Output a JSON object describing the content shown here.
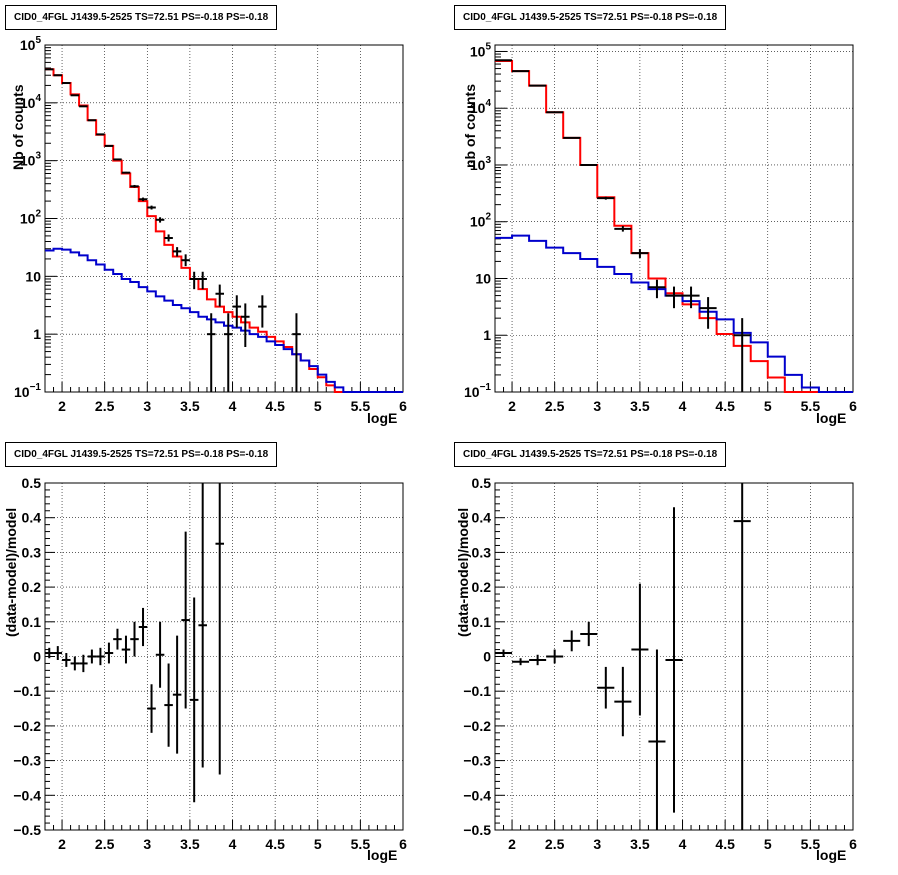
{
  "chart_data": [
    {
      "type": "line",
      "title": "CID0_4FGL J1439.5-2525 TS=72.51 PS=-0.18 PS=-0.18",
      "xlabel": "logE",
      "ylabel": "Nb of counts",
      "xlim": [
        1.8,
        6.0
      ],
      "ylim": [
        0.1,
        100000
      ],
      "yscale": "log",
      "grid": true,
      "xticks": [
        "2",
        "2.5",
        "3",
        "3.5",
        "4",
        "4.5",
        "5",
        "5.5",
        "6"
      ],
      "yticks": [
        {
          "v": 0.1,
          "base": "10",
          "exp": "−1"
        },
        {
          "v": 1,
          "base": "1",
          "exp": ""
        },
        {
          "v": 10,
          "base": "10",
          "exp": ""
        },
        {
          "v": 100,
          "base": "10",
          "exp": "2"
        },
        {
          "v": 1000,
          "base": "10",
          "exp": "3"
        },
        {
          "v": 10000,
          "base": "10",
          "exp": "4"
        },
        {
          "v": 100000,
          "base": "10",
          "exp": "5"
        }
      ],
      "binwidth": 0.1,
      "series": [
        {
          "color": "#ff0000",
          "x": [
            1.8,
            1.9,
            2.0,
            2.1,
            2.2,
            2.3,
            2.4,
            2.5,
            2.6,
            2.7,
            2.8,
            2.9,
            3.0,
            3.1,
            3.2,
            3.3,
            3.4,
            3.5,
            3.6,
            3.7,
            3.8,
            3.9,
            4.0,
            4.1,
            4.2,
            4.3,
            4.4,
            4.5,
            4.6,
            4.7,
            4.8,
            4.9,
            5.0,
            5.1,
            5.2,
            5.3,
            5.4,
            5.5,
            5.6,
            5.7,
            5.8,
            5.9
          ],
          "values": [
            38000,
            30000,
            22000,
            14000,
            9000,
            5000,
            2800,
            1800,
            1000,
            600,
            350,
            200,
            110,
            60,
            35,
            22,
            14,
            9,
            6,
            4,
            3,
            2.4,
            2.0,
            1.6,
            1.3,
            1.1,
            0.9,
            0.75,
            0.6,
            0.45,
            0.35,
            0.25,
            0.18,
            0.13,
            0.1,
            0.1,
            0.1,
            0.1,
            0.1,
            0.1,
            0.1,
            0.1
          ]
        },
        {
          "color": "#0000cc",
          "x": [
            1.8,
            1.9,
            2.0,
            2.1,
            2.2,
            2.3,
            2.4,
            2.5,
            2.6,
            2.7,
            2.8,
            2.9,
            3.0,
            3.1,
            3.2,
            3.3,
            3.4,
            3.5,
            3.6,
            3.7,
            3.8,
            3.9,
            4.0,
            4.1,
            4.2,
            4.3,
            4.4,
            4.5,
            4.6,
            4.7,
            4.8,
            4.9,
            5.0,
            5.1,
            5.2,
            5.3,
            5.4,
            5.5,
            5.6,
            5.7,
            5.8,
            5.9
          ],
          "values": [
            28,
            30,
            29,
            26,
            23,
            19,
            16,
            13,
            11,
            9,
            8,
            6.5,
            5.5,
            4.5,
            3.8,
            3.2,
            2.8,
            2.4,
            2.0,
            1.8,
            1.6,
            1.4,
            1.3,
            1.15,
            1.0,
            0.9,
            0.75,
            0.65,
            0.55,
            0.45,
            0.35,
            0.28,
            0.2,
            0.15,
            0.12,
            0.1,
            0.1,
            0.1,
            0.1,
            0.1,
            0.1,
            0.1
          ]
        }
      ],
      "points": [
        {
          "x": 1.85,
          "y": 38000,
          "lo": 37600,
          "hi": 38400
        },
        {
          "x": 1.95,
          "y": 30000,
          "lo": 29600,
          "hi": 30400
        },
        {
          "x": 2.05,
          "y": 22000,
          "lo": 21700,
          "hi": 22300
        },
        {
          "x": 2.15,
          "y": 13500,
          "lo": 13300,
          "hi": 13700
        },
        {
          "x": 2.25,
          "y": 8700,
          "lo": 8600,
          "hi": 8800
        },
        {
          "x": 2.35,
          "y": 5000,
          "lo": 4930,
          "hi": 5070
        },
        {
          "x": 2.45,
          "y": 2850,
          "lo": 2800,
          "hi": 2900
        },
        {
          "x": 2.55,
          "y": 1800,
          "lo": 1760,
          "hi": 1840
        },
        {
          "x": 2.65,
          "y": 1050,
          "lo": 1020,
          "hi": 1080
        },
        {
          "x": 2.75,
          "y": 620,
          "lo": 600,
          "hi": 640
        },
        {
          "x": 2.85,
          "y": 360,
          "lo": 340,
          "hi": 380
        },
        {
          "x": 2.95,
          "y": 215,
          "lo": 200,
          "hi": 230
        },
        {
          "x": 3.05,
          "y": 155,
          "lo": 143,
          "hi": 167
        },
        {
          "x": 3.15,
          "y": 95,
          "lo": 85,
          "hi": 105
        },
        {
          "x": 3.25,
          "y": 46,
          "lo": 40,
          "hi": 53
        },
        {
          "x": 3.35,
          "y": 27,
          "lo": 22,
          "hi": 32
        },
        {
          "x": 3.45,
          "y": 19,
          "lo": 15,
          "hi": 24
        },
        {
          "x": 3.55,
          "y": 9,
          "lo": 6,
          "hi": 12
        },
        {
          "x": 3.65,
          "y": 9,
          "lo": 6,
          "hi": 12
        },
        {
          "x": 3.75,
          "y": 1,
          "lo": 0.1,
          "hi": 2.3
        },
        {
          "x": 3.85,
          "y": 5,
          "lo": 3,
          "hi": 7.2
        },
        {
          "x": 3.95,
          "y": 1,
          "lo": 0.1,
          "hi": 2.3
        },
        {
          "x": 4.05,
          "y": 3,
          "lo": 1.3,
          "hi": 4.7
        },
        {
          "x": 4.15,
          "y": 2,
          "lo": 0.6,
          "hi": 3.4
        },
        {
          "x": 4.35,
          "y": 3,
          "lo": 1.3,
          "hi": 4.7
        },
        {
          "x": 4.75,
          "y": 1,
          "lo": 0.1,
          "hi": 2.3
        }
      ]
    },
    {
      "type": "line",
      "title": "CID0_4FGL J1439.5-2525 TS=72.51 PS=-0.18 PS=-0.18",
      "xlabel": "logE",
      "ylabel": "nb of counts",
      "xlim": [
        1.8,
        6.0
      ],
      "ylim": [
        0.1,
        130000
      ],
      "yscale": "log",
      "grid": true,
      "xticks": [
        "2",
        "2.5",
        "3",
        "3.5",
        "4",
        "4.5",
        "5",
        "5.5",
        "6"
      ],
      "yticks": [
        {
          "v": 0.1,
          "base": "10",
          "exp": "−1"
        },
        {
          "v": 1,
          "base": "1",
          "exp": ""
        },
        {
          "v": 10,
          "base": "10",
          "exp": ""
        },
        {
          "v": 100,
          "base": "10",
          "exp": "2"
        },
        {
          "v": 1000,
          "base": "10",
          "exp": "3"
        },
        {
          "v": 10000,
          "base": "10",
          "exp": "4"
        },
        {
          "v": 100000,
          "base": "10",
          "exp": "5"
        }
      ],
      "binwidth": 0.2,
      "series": [
        {
          "color": "#ff0000",
          "x": [
            1.8,
            2.0,
            2.2,
            2.4,
            2.6,
            2.8,
            3.0,
            3.2,
            3.4,
            3.6,
            3.8,
            4.0,
            4.2,
            4.4,
            4.6,
            4.8,
            5.0,
            5.2,
            5.4,
            5.6,
            5.8
          ],
          "values": [
            68000,
            45000,
            25000,
            8500,
            3000,
            1000,
            270,
            85,
            28,
            10,
            5.5,
            3.5,
            2.0,
            1.05,
            0.65,
            0.35,
            0.18,
            0.1,
            0.1,
            0.1,
            0.1
          ]
        },
        {
          "color": "#0000cc",
          "x": [
            1.8,
            2.0,
            2.2,
            2.4,
            2.6,
            2.8,
            3.0,
            3.2,
            3.4,
            3.6,
            3.8,
            4.0,
            4.2,
            4.4,
            4.6,
            4.8,
            5.0,
            5.2,
            5.4,
            5.6,
            5.8
          ],
          "values": [
            52,
            57,
            46,
            35,
            28,
            22,
            16,
            12,
            8.5,
            6.5,
            5,
            4,
            2.6,
            1.9,
            1.1,
            0.75,
            0.42,
            0.2,
            0.12,
            0.1,
            0.1
          ]
        }
      ],
      "points": [
        {
          "x": 1.9,
          "y": 70000,
          "lo": 69500,
          "hi": 70500
        },
        {
          "x": 2.1,
          "y": 45000,
          "lo": 44600,
          "hi": 45400
        },
        {
          "x": 2.3,
          "y": 25000,
          "lo": 24700,
          "hi": 25300
        },
        {
          "x": 2.5,
          "y": 8500,
          "lo": 8400,
          "hi": 8600
        },
        {
          "x": 2.7,
          "y": 3000,
          "lo": 2950,
          "hi": 3050
        },
        {
          "x": 2.9,
          "y": 1000,
          "lo": 970,
          "hi": 1030
        },
        {
          "x": 3.1,
          "y": 260,
          "lo": 245,
          "hi": 275
        },
        {
          "x": 3.3,
          "y": 75,
          "lo": 67,
          "hi": 84
        },
        {
          "x": 3.5,
          "y": 28,
          "lo": 23,
          "hi": 33
        },
        {
          "x": 3.7,
          "y": 7,
          "lo": 4.5,
          "hi": 9.5
        },
        {
          "x": 3.9,
          "y": 5,
          "lo": 3,
          "hi": 7.2
        },
        {
          "x": 4.1,
          "y": 5,
          "lo": 3,
          "hi": 7.2
        },
        {
          "x": 4.3,
          "y": 3,
          "lo": 1.3,
          "hi": 4.7
        },
        {
          "x": 4.7,
          "y": 1,
          "lo": 0.1,
          "hi": 2.0
        }
      ]
    },
    {
      "type": "scatter",
      "title": "CID0_4FGL J1439.5-2525 TS=72.51 PS=-0.18 PS=-0.18",
      "xlabel": "logE",
      "ylabel": "(data-model)/model",
      "xlim": [
        1.8,
        6.0
      ],
      "ylim": [
        -0.5,
        0.5
      ],
      "yscale": "linear",
      "grid": true,
      "xticks": [
        "2",
        "2.5",
        "3",
        "3.5",
        "4",
        "4.5",
        "5",
        "5.5",
        "6"
      ],
      "yticks": [
        {
          "v": -0.5,
          "base": "−0.5",
          "exp": ""
        },
        {
          "v": -0.4,
          "base": "−0.4",
          "exp": ""
        },
        {
          "v": -0.3,
          "base": "−0.3",
          "exp": ""
        },
        {
          "v": -0.2,
          "base": "−0.2",
          "exp": ""
        },
        {
          "v": -0.1,
          "base": "−0.1",
          "exp": ""
        },
        {
          "v": 0,
          "base": "0",
          "exp": ""
        },
        {
          "v": 0.1,
          "base": "0.1",
          "exp": ""
        },
        {
          "v": 0.2,
          "base": "0.2",
          "exp": ""
        },
        {
          "v": 0.3,
          "base": "0.3",
          "exp": ""
        },
        {
          "v": 0.4,
          "base": "0.4",
          "exp": ""
        },
        {
          "v": 0.5,
          "base": "0.5",
          "exp": ""
        }
      ],
      "binwidth": 0.1,
      "points": [
        {
          "x": 1.85,
          "y": 0.01,
          "lo": -0.005,
          "hi": 0.025
        },
        {
          "x": 1.95,
          "y": 0.01,
          "lo": -0.01,
          "hi": 0.03
        },
        {
          "x": 2.05,
          "y": -0.01,
          "lo": -0.03,
          "hi": 0.01
        },
        {
          "x": 2.15,
          "y": -0.02,
          "lo": -0.04,
          "hi": 0.0
        },
        {
          "x": 2.25,
          "y": -0.02,
          "lo": -0.045,
          "hi": 0.005
        },
        {
          "x": 2.35,
          "y": 0.0,
          "lo": -0.02,
          "hi": 0.02
        },
        {
          "x": 2.45,
          "y": 0.0,
          "lo": -0.025,
          "hi": 0.025
        },
        {
          "x": 2.55,
          "y": 0.01,
          "lo": -0.02,
          "hi": 0.04
        },
        {
          "x": 2.65,
          "y": 0.05,
          "lo": 0.02,
          "hi": 0.08
        },
        {
          "x": 2.75,
          "y": 0.02,
          "lo": -0.02,
          "hi": 0.06
        },
        {
          "x": 2.85,
          "y": 0.05,
          "lo": 0.0,
          "hi": 0.1
        },
        {
          "x": 2.95,
          "y": 0.085,
          "lo": 0.03,
          "hi": 0.14
        },
        {
          "x": 3.05,
          "y": -0.15,
          "lo": -0.22,
          "hi": -0.08
        },
        {
          "x": 3.15,
          "y": 0.005,
          "lo": -0.09,
          "hi": 0.1
        },
        {
          "x": 3.25,
          "y": -0.14,
          "lo": -0.26,
          "hi": -0.02
        },
        {
          "x": 3.35,
          "y": -0.11,
          "lo": -0.28,
          "hi": 0.06
        },
        {
          "x": 3.45,
          "y": 0.105,
          "lo": -0.15,
          "hi": 0.36
        },
        {
          "x": 3.55,
          "y": -0.125,
          "lo": -0.42,
          "hi": 0.17
        },
        {
          "x": 3.65,
          "y": 0.09,
          "lo": -0.32,
          "hi": 0.5
        },
        {
          "x": 3.85,
          "y": 0.325,
          "lo": -0.34,
          "hi": 0.5
        }
      ]
    },
    {
      "type": "scatter",
      "title": "CID0_4FGL J1439.5-2525 TS=72.51 PS=-0.18 PS=-0.18",
      "xlabel": "logE",
      "ylabel": "(data-model)/model",
      "xlim": [
        1.8,
        6.0
      ],
      "ylim": [
        -0.5,
        0.5
      ],
      "yscale": "linear",
      "grid": true,
      "xticks": [
        "2",
        "2.5",
        "3",
        "3.5",
        "4",
        "4.5",
        "5",
        "5.5",
        "6"
      ],
      "yticks": [
        {
          "v": -0.5,
          "base": "−0.5",
          "exp": ""
        },
        {
          "v": -0.4,
          "base": "−0.4",
          "exp": ""
        },
        {
          "v": -0.3,
          "base": "−0.3",
          "exp": ""
        },
        {
          "v": -0.2,
          "base": "−0.2",
          "exp": ""
        },
        {
          "v": -0.1,
          "base": "−0.1",
          "exp": ""
        },
        {
          "v": 0,
          "base": "0",
          "exp": ""
        },
        {
          "v": 0.1,
          "base": "0.1",
          "exp": ""
        },
        {
          "v": 0.2,
          "base": "0.2",
          "exp": ""
        },
        {
          "v": 0.3,
          "base": "0.3",
          "exp": ""
        },
        {
          "v": 0.4,
          "base": "0.4",
          "exp": ""
        },
        {
          "v": 0.5,
          "base": "0.5",
          "exp": ""
        }
      ],
      "binwidth": 0.2,
      "points": [
        {
          "x": 1.9,
          "y": 0.01,
          "lo": 0.0,
          "hi": 0.02
        },
        {
          "x": 2.1,
          "y": -0.015,
          "lo": -0.025,
          "hi": -0.005
        },
        {
          "x": 2.3,
          "y": -0.01,
          "lo": -0.025,
          "hi": 0.005
        },
        {
          "x": 2.5,
          "y": 0.0,
          "lo": -0.02,
          "hi": 0.02
        },
        {
          "x": 2.7,
          "y": 0.045,
          "lo": 0.015,
          "hi": 0.075
        },
        {
          "x": 2.9,
          "y": 0.065,
          "lo": 0.03,
          "hi": 0.1
        },
        {
          "x": 3.1,
          "y": -0.09,
          "lo": -0.15,
          "hi": -0.03
        },
        {
          "x": 3.3,
          "y": -0.13,
          "lo": -0.23,
          "hi": -0.03
        },
        {
          "x": 3.5,
          "y": 0.02,
          "lo": -0.17,
          "hi": 0.21
        },
        {
          "x": 3.7,
          "y": -0.245,
          "lo": -0.5,
          "hi": 0.02
        },
        {
          "x": 3.9,
          "y": -0.01,
          "lo": -0.45,
          "hi": 0.43
        },
        {
          "x": 4.7,
          "y": 0.39,
          "lo": -0.5,
          "hi": 0.5
        }
      ]
    }
  ]
}
